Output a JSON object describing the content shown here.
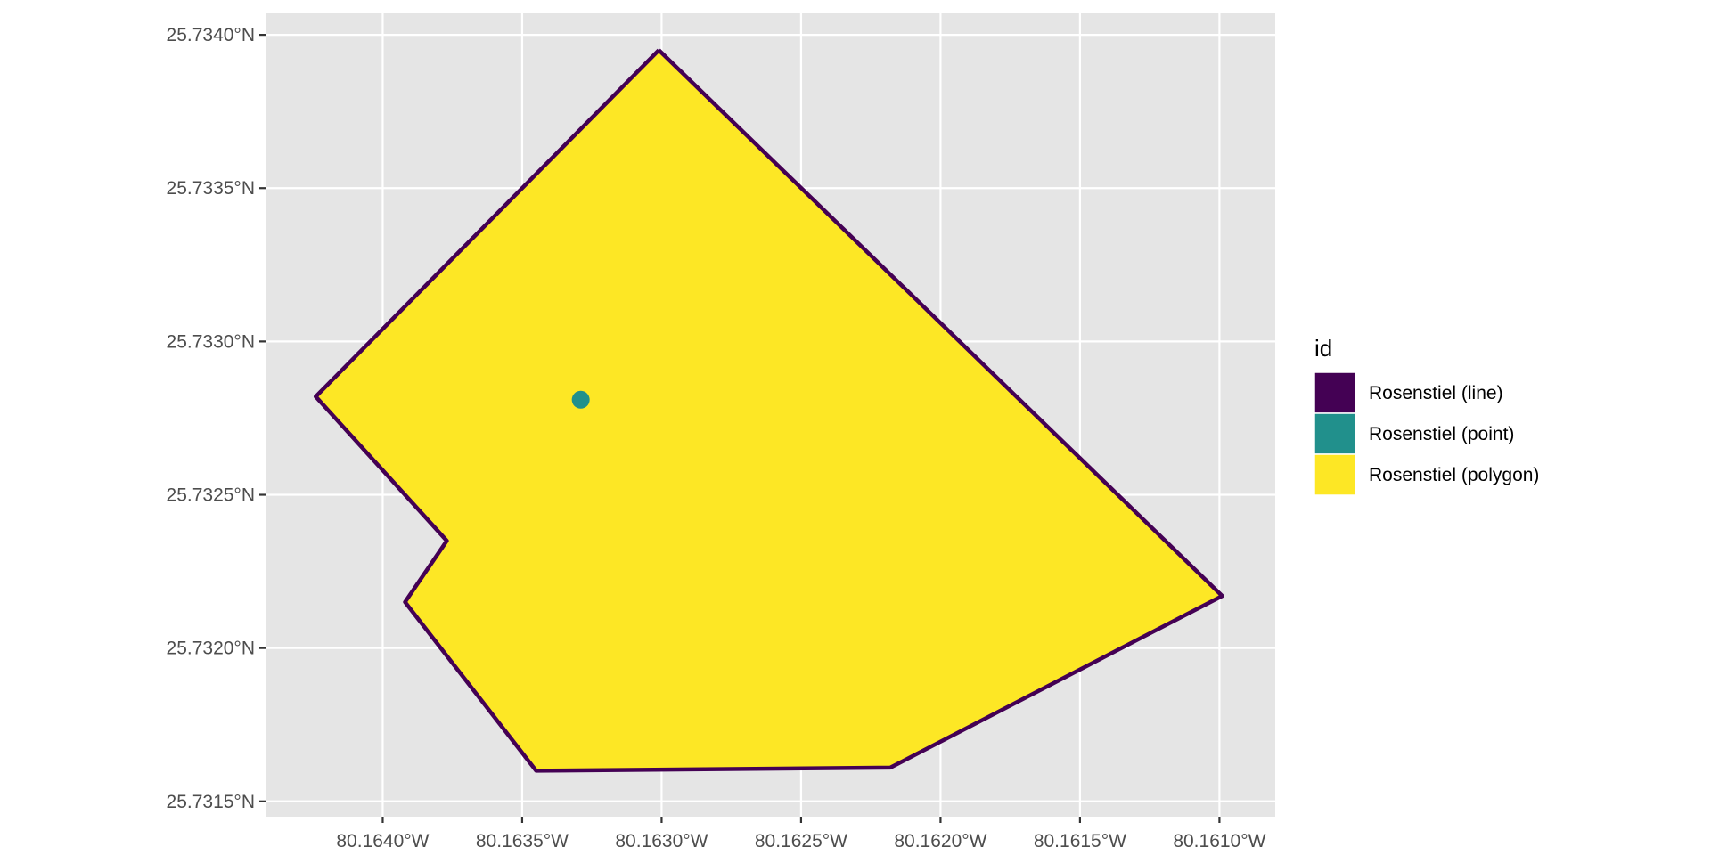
{
  "chart_data": {
    "type": "map",
    "crs": "lon/lat (WGS84)",
    "xlim": [
      -80.16442,
      -80.1608
    ],
    "ylim": [
      25.73145,
      25.73407
    ],
    "x_ticks": [
      {
        "value": -80.164,
        "label": "80.1640°W"
      },
      {
        "value": -80.1635,
        "label": "80.1635°W"
      },
      {
        "value": -80.163,
        "label": "80.1630°W"
      },
      {
        "value": -80.1625,
        "label": "80.1625°W"
      },
      {
        "value": -80.162,
        "label": "80.1620°W"
      },
      {
        "value": -80.1615,
        "label": "80.1615°W"
      },
      {
        "value": -80.161,
        "label": "80.1610°W"
      }
    ],
    "y_ticks": [
      {
        "value": 25.7315,
        "label": "25.7315°N"
      },
      {
        "value": 25.732,
        "label": "25.7320°N"
      },
      {
        "value": 25.7325,
        "label": "25.7325°N"
      },
      {
        "value": 25.733,
        "label": "25.7330°N"
      },
      {
        "value": 25.7335,
        "label": "25.7335°N"
      },
      {
        "value": 25.734,
        "label": "25.7340°N"
      }
    ],
    "grid": true,
    "layers": [
      {
        "id": "Rosenstiel (polygon)",
        "geometry": "polygon",
        "fill": "#FDE725",
        "coordinates": [
          [
            -80.16301,
            25.73395
          ],
          [
            -80.16099,
            25.73217
          ],
          [
            -80.16218,
            25.73161
          ],
          [
            -80.16345,
            25.7316
          ],
          [
            -80.16392,
            25.73215
          ],
          [
            -80.16377,
            25.73235
          ],
          [
            -80.16424,
            25.73282
          ],
          [
            -80.16301,
            25.73395
          ]
        ]
      },
      {
        "id": "Rosenstiel (line)",
        "geometry": "line",
        "color": "#440154",
        "coordinates": [
          [
            -80.16301,
            25.73395
          ],
          [
            -80.16099,
            25.73217
          ],
          [
            -80.16218,
            25.73161
          ],
          [
            -80.16345,
            25.7316
          ],
          [
            -80.16392,
            25.73215
          ],
          [
            -80.16377,
            25.73235
          ],
          [
            -80.16424,
            25.73282
          ],
          [
            -80.16301,
            25.73395
          ]
        ]
      },
      {
        "id": "Rosenstiel (point)",
        "geometry": "point",
        "color": "#21908C",
        "coordinates": [
          -80.16329,
          25.73281
        ]
      }
    ],
    "legend": {
      "title": "id",
      "placement": "right",
      "entries": [
        {
          "label": "Rosenstiel (line)",
          "color": "#440154"
        },
        {
          "label": "Rosenstiel (point)",
          "color": "#21908C"
        },
        {
          "label": "Rosenstiel (polygon)",
          "color": "#FDE725"
        }
      ]
    }
  }
}
